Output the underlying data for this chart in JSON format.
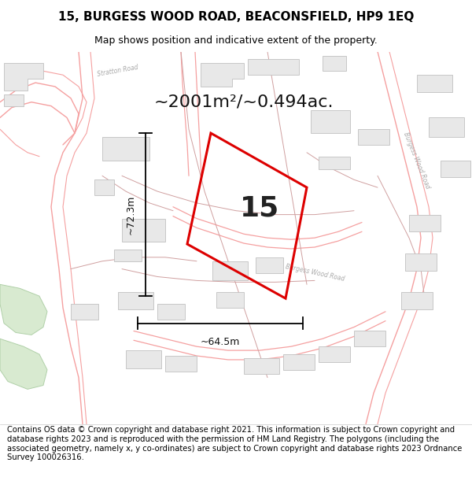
{
  "title_line1": "15, BURGESS WOOD ROAD, BEACONSFIELD, HP9 1EQ",
  "title_line2": "Map shows position and indicative extent of the property.",
  "footer_text": "Contains OS data © Crown copyright and database right 2021. This information is subject to Crown copyright and database rights 2023 and is reproduced with the permission of HM Land Registry. The polygons (including the associated geometry, namely x, y co-ordinates) are subject to Crown copyright and database rights 2023 Ordnance Survey 100026316.",
  "area_text": "~2001m²/~0.494ac.",
  "width_label": "~64.5m",
  "height_label": "~72.3m",
  "property_number": "15",
  "bg_color": "#ffffff",
  "map_bg_color": "#ffffff",
  "plot_outline_color": "#dd0000",
  "road_line_color": "#f5a0a0",
  "road_line_color2": "#e08080",
  "building_fill": "#e8e8e8",
  "building_edge": "#c0c0c0",
  "parcel_line_color": "#d0a0a0",
  "title_fontsize": 11,
  "subtitle_fontsize": 9,
  "footer_fontsize": 7.2,
  "area_fontsize": 16,
  "dim_fontsize": 9,
  "number_fontsize": 26,
  "label_color": "#b0b0b0",
  "road_label_color": "#aaaaaa"
}
